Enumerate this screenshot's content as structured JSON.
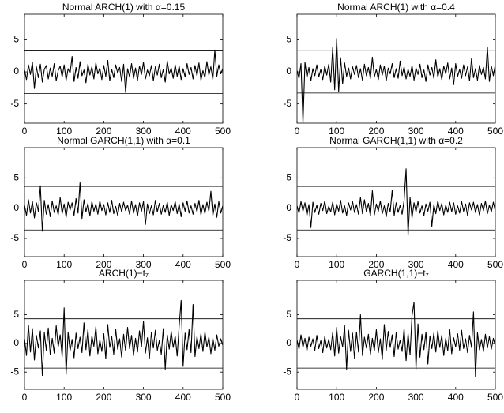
{
  "chart_data": [
    {
      "type": "line",
      "title": "Normal ARCH(1) with α=0.15",
      "color": "#000000",
      "xlim": [
        0,
        500
      ],
      "xticks": [
        0,
        100,
        200,
        300,
        400,
        500
      ],
      "ylim": [
        -8,
        9
      ],
      "yticks": [
        -5,
        0,
        5
      ],
      "hlines": [
        3.4,
        -3.4
      ],
      "x": [
        0,
        5,
        10,
        15,
        20,
        25,
        30,
        35,
        40,
        45,
        50,
        55,
        60,
        65,
        70,
        75,
        80,
        85,
        90,
        95,
        100,
        105,
        110,
        115,
        120,
        125,
        130,
        135,
        140,
        145,
        150,
        155,
        160,
        165,
        170,
        175,
        180,
        185,
        190,
        195,
        200,
        205,
        210,
        215,
        220,
        225,
        230,
        235,
        240,
        245,
        250,
        255,
        260,
        265,
        270,
        275,
        280,
        285,
        290,
        295,
        300,
        305,
        310,
        315,
        320,
        325,
        330,
        335,
        340,
        345,
        350,
        355,
        360,
        365,
        370,
        375,
        380,
        385,
        390,
        395,
        400,
        405,
        410,
        415,
        420,
        425,
        430,
        435,
        440,
        445,
        450,
        455,
        460,
        465,
        470,
        475,
        480,
        485,
        490,
        495,
        500
      ],
      "values": [
        0.3,
        -1.2,
        1.1,
        -0.4,
        1.5,
        -2.6,
        0.8,
        -0.9,
        1.2,
        -1.6,
        0.4,
        1.0,
        -1.1,
        0.6,
        -0.7,
        1.3,
        -1.4,
        0.2,
        0.9,
        -0.8,
        1.1,
        -1.3,
        0.5,
        -0.2,
        2.4,
        -1.5,
        0.7,
        -1.0,
        1.6,
        -0.6,
        0.3,
        -1.7,
        1.2,
        -0.5,
        0.8,
        -1.1,
        1.4,
        -0.3,
        0.6,
        -1.2,
        1.0,
        -0.7,
        1.8,
        -1.4,
        0.4,
        -0.9,
        1.1,
        -0.2,
        0.7,
        -1.5,
        1.2,
        -3.2,
        0.5,
        -0.8,
        1.3,
        -1.0,
        0.6,
        -1.3,
        0.9,
        -0.4,
        1.5,
        -1.1,
        0.3,
        -0.6,
        1.0,
        -1.4,
        0.8,
        -0.5,
        1.2,
        -0.9,
        0.4,
        -1.6,
        1.7,
        -0.3,
        0.6,
        -1.0,
        1.1,
        -0.7,
        0.9,
        -1.2,
        0.5,
        -0.8,
        1.3,
        -0.4,
        0.7,
        -1.1,
        1.0,
        -0.6,
        1.4,
        -1.3,
        0.2,
        -0.9,
        1.6,
        -0.5,
        0.8,
        -1.2,
        3.4,
        -0.7,
        1.1,
        -0.3,
        0.5
      ]
    },
    {
      "type": "line",
      "title": "Normal ARCH(1) with α=0.4",
      "color": "#000000",
      "xlim": [
        0,
        500
      ],
      "xticks": [
        0,
        100,
        200,
        300,
        400,
        500
      ],
      "ylim": [
        -8,
        9
      ],
      "yticks": [
        -5,
        0,
        5
      ],
      "hlines": [
        3.3,
        -3.3
      ],
      "x": [
        0,
        5,
        10,
        15,
        20,
        25,
        30,
        35,
        40,
        45,
        50,
        55,
        60,
        65,
        70,
        75,
        80,
        85,
        90,
        95,
        100,
        105,
        110,
        115,
        120,
        125,
        130,
        135,
        140,
        145,
        150,
        155,
        160,
        165,
        170,
        175,
        180,
        185,
        190,
        195,
        200,
        205,
        210,
        215,
        220,
        225,
        230,
        235,
        240,
        245,
        250,
        255,
        260,
        265,
        270,
        275,
        280,
        285,
        290,
        295,
        300,
        305,
        310,
        315,
        320,
        325,
        330,
        335,
        340,
        345,
        350,
        355,
        360,
        365,
        370,
        375,
        380,
        385,
        390,
        395,
        400,
        405,
        410,
        415,
        420,
        425,
        430,
        435,
        440,
        445,
        450,
        455,
        460,
        465,
        470,
        475,
        480,
        485,
        490,
        495,
        500
      ],
      "values": [
        0.2,
        -1.0,
        1.3,
        -8.0,
        1.5,
        -0.9,
        0.7,
        -1.4,
        0.5,
        -0.6,
        1.1,
        -0.8,
        0.4,
        -1.2,
        0.9,
        -0.5,
        1.2,
        -1.6,
        3.8,
        -2.8,
        5.2,
        -3.1,
        2.2,
        -1.9,
        1.4,
        -0.7,
        0.6,
        -1.1,
        0.8,
        -0.4,
        1.0,
        -0.9,
        0.5,
        -1.3,
        1.2,
        -0.6,
        0.7,
        -1.0,
        2.3,
        -0.8,
        0.4,
        -1.2,
        1.1,
        -0.5,
        0.9,
        -1.4,
        0.6,
        -0.3,
        1.3,
        -0.9,
        0.5,
        -1.0,
        1.7,
        -0.6,
        0.8,
        -1.1,
        0.4,
        -0.7,
        1.0,
        -1.3,
        0.6,
        -0.4,
        1.2,
        -0.9,
        0.3,
        -1.5,
        1.1,
        -0.5,
        0.7,
        -1.0,
        1.9,
        -0.8,
        0.5,
        -1.2,
        0.9,
        -0.3,
        1.4,
        -1.1,
        0.6,
        -2.0,
        1.3,
        -0.7,
        0.4,
        -1.0,
        1.1,
        -0.6,
        0.8,
        -1.4,
        2.1,
        -0.9,
        0.5,
        -1.3,
        1.0,
        -0.4,
        0.7,
        -1.1,
        3.9,
        -1.5,
        0.9,
        -0.6,
        1.2
      ]
    },
    {
      "type": "line",
      "title": "Normal GARCH(1,1) with α=0.1",
      "color": "#000000",
      "xlim": [
        0,
        500
      ],
      "xticks": [
        0,
        100,
        200,
        300,
        400,
        500
      ],
      "ylim": [
        -8,
        10
      ],
      "yticks": [
        -5,
        0,
        5
      ],
      "hlines": [
        3.6,
        -3.6
      ],
      "x": [
        0,
        5,
        10,
        15,
        20,
        25,
        30,
        35,
        40,
        45,
        50,
        55,
        60,
        65,
        70,
        75,
        80,
        85,
        90,
        95,
        100,
        105,
        110,
        115,
        120,
        125,
        130,
        135,
        140,
        145,
        150,
        155,
        160,
        165,
        170,
        175,
        180,
        185,
        190,
        195,
        200,
        205,
        210,
        215,
        220,
        225,
        230,
        235,
        240,
        245,
        250,
        255,
        260,
        265,
        270,
        275,
        280,
        285,
        290,
        295,
        300,
        305,
        310,
        315,
        320,
        325,
        330,
        335,
        340,
        345,
        350,
        355,
        360,
        365,
        370,
        375,
        380,
        385,
        390,
        395,
        400,
        405,
        410,
        415,
        420,
        425,
        430,
        435,
        440,
        445,
        450,
        455,
        460,
        465,
        470,
        475,
        480,
        485,
        490,
        495,
        500
      ],
      "values": [
        0.5,
        -1.2,
        1.4,
        -0.8,
        1.1,
        -1.6,
        0.9,
        -0.5,
        3.7,
        -3.8,
        1.3,
        -1.0,
        0.6,
        -1.4,
        1.2,
        -0.7,
        0.4,
        -1.1,
        1.8,
        -0.9,
        0.7,
        -1.5,
        1.0,
        -0.3,
        0.9,
        -1.2,
        1.6,
        -0.8,
        4.2,
        -1.7,
        1.4,
        -0.6,
        0.8,
        -1.3,
        1.1,
        -0.5,
        0.7,
        -1.0,
        1.2,
        -0.4,
        0.6,
        -1.1,
        0.9,
        -0.7,
        1.3,
        -0.9,
        0.3,
        -1.2,
        0.8,
        -0.6,
        1.0,
        -0.4,
        0.5,
        -1.0,
        1.2,
        -0.8,
        0.6,
        -1.3,
        0.9,
        -0.5,
        1.1,
        -2.7,
        0.7,
        -0.9,
        0.4,
        -1.1,
        1.3,
        -0.6,
        0.8,
        -1.0,
        0.5,
        -0.7,
        1.0,
        -1.2,
        0.6,
        -0.4,
        1.1,
        -0.9,
        0.7,
        -1.4,
        0.9,
        -0.5,
        1.2,
        -0.8,
        0.4,
        -1.0,
        0.8,
        -0.6,
        1.3,
        -1.1,
        0.6,
        -0.9,
        1.0,
        -0.5,
        2.8,
        -1.2,
        0.7,
        -1.5,
        1.1,
        -0.8,
        0.4
      ]
    },
    {
      "type": "line",
      "title": "Normal GARCH(1,1) with α=0.2",
      "color": "#000000",
      "xlim": [
        0,
        500
      ],
      "xticks": [
        0,
        100,
        200,
        300,
        400,
        500
      ],
      "ylim": [
        -8,
        10
      ],
      "yticks": [
        -5,
        0,
        5
      ],
      "hlines": [
        3.6,
        -3.6
      ],
      "x": [
        0,
        5,
        10,
        15,
        20,
        25,
        30,
        35,
        40,
        45,
        50,
        55,
        60,
        65,
        70,
        75,
        80,
        85,
        90,
        95,
        100,
        105,
        110,
        115,
        120,
        125,
        130,
        135,
        140,
        145,
        150,
        155,
        160,
        165,
        170,
        175,
        180,
        185,
        190,
        195,
        200,
        205,
        210,
        215,
        220,
        225,
        230,
        235,
        240,
        245,
        250,
        255,
        260,
        265,
        270,
        275,
        280,
        285,
        290,
        295,
        300,
        305,
        310,
        315,
        320,
        325,
        330,
        335,
        340,
        345,
        350,
        355,
        360,
        365,
        370,
        375,
        380,
        385,
        390,
        395,
        400,
        405,
        410,
        415,
        420,
        425,
        430,
        435,
        440,
        445,
        450,
        455,
        460,
        465,
        470,
        475,
        480,
        485,
        490,
        495,
        500
      ],
      "values": [
        0.4,
        -0.8,
        1.1,
        -0.5,
        0.9,
        -1.2,
        0.6,
        -3.2,
        1.0,
        -0.7,
        0.5,
        -1.0,
        0.8,
        -0.4,
        1.2,
        -0.9,
        0.3,
        -0.6,
        1.0,
        -1.1,
        0.7,
        -0.5,
        1.3,
        -0.8,
        0.4,
        -1.2,
        0.9,
        -0.3,
        1.1,
        -0.7,
        0.6,
        -1.0,
        1.8,
        -0.9,
        1.4,
        -0.6,
        0.8,
        -1.3,
        2.9,
        -1.1,
        0.7,
        -0.5,
        1.2,
        -0.9,
        0.4,
        -1.4,
        0.8,
        -0.6,
        3.0,
        -1.2,
        0.9,
        -0.7,
        0.5,
        -1.0,
        1.3,
        6.5,
        -4.5,
        1.8,
        -1.6,
        0.9,
        -0.6,
        1.1,
        -0.8,
        0.4,
        -1.2,
        0.7,
        -0.5,
        1.0,
        -3.0,
        0.6,
        -0.9,
        1.2,
        -0.4,
        0.8,
        -1.1,
        0.5,
        -0.7,
        1.0,
        -0.6,
        0.9,
        -1.0,
        0.4,
        -0.8,
        1.1,
        -0.5,
        0.7,
        -1.2,
        0.9,
        -0.3,
        1.0,
        -0.7,
        0.6,
        -1.1,
        0.8,
        -0.4,
        1.2,
        -0.9,
        0.5,
        -0.6,
        1.0,
        -0.5
      ]
    },
    {
      "type": "line",
      "title": "ARCH(1)−t₇",
      "color": "#000000",
      "xlim": [
        0,
        500
      ],
      "xticks": [
        0,
        100,
        200,
        300,
        400,
        500
      ],
      "ylim": [
        -8,
        11
      ],
      "yticks": [
        -5,
        0,
        5
      ],
      "hlines": [
        4.3,
        -4.3
      ],
      "x": [
        0,
        5,
        10,
        15,
        20,
        25,
        30,
        35,
        40,
        45,
        50,
        55,
        60,
        65,
        70,
        75,
        80,
        85,
        90,
        95,
        100,
        105,
        110,
        115,
        120,
        125,
        130,
        135,
        140,
        145,
        150,
        155,
        160,
        165,
        170,
        175,
        180,
        185,
        190,
        195,
        200,
        205,
        210,
        215,
        220,
        225,
        230,
        235,
        240,
        245,
        250,
        255,
        260,
        265,
        270,
        275,
        280,
        285,
        290,
        295,
        300,
        305,
        310,
        315,
        320,
        325,
        330,
        335,
        340,
        345,
        350,
        355,
        360,
        365,
        370,
        375,
        380,
        385,
        390,
        395,
        400,
        405,
        410,
        415,
        420,
        425,
        430,
        435,
        440,
        445,
        450,
        455,
        460,
        465,
        470,
        475,
        480,
        485,
        490,
        495,
        500
      ],
      "values": [
        0.8,
        -2.1,
        3.2,
        -1.5,
        2.6,
        -2.9,
        1.4,
        -0.8,
        2.2,
        -5.6,
        1.9,
        -1.2,
        2.7,
        -2.0,
        0.9,
        -1.7,
        3.1,
        -0.6,
        1.5,
        -2.3,
        6.2,
        -5.4,
        2.0,
        -1.3,
        0.7,
        -2.5,
        1.8,
        -0.9,
        1.1,
        -1.6,
        3.6,
        -1.1,
        2.4,
        -2.2,
        1.3,
        -0.5,
        2.9,
        -1.8,
        0.6,
        -1.4,
        1.7,
        -2.7,
        3.3,
        -0.7,
        1.2,
        -1.9,
        2.5,
        -1.0,
        0.8,
        -2.4,
        1.6,
        -1.3,
        2.8,
        -0.9,
        1.4,
        -2.1,
        0.9,
        -1.5,
        2.2,
        -0.6,
        3.9,
        -1.7,
        1.0,
        -2.6,
        1.9,
        -0.8,
        2.3,
        -1.2,
        0.5,
        -1.9,
        2.6,
        -4.5,
        1.5,
        -1.0,
        2.1,
        -0.7,
        1.3,
        -2.2,
        3.0,
        7.5,
        -4.0,
        1.8,
        -1.1,
        2.4,
        -1.6,
        6.8,
        -2.3,
        1.2,
        -0.9,
        1.7,
        -1.4,
        2.0,
        -0.6,
        1.1,
        -1.8,
        0.9,
        -1.2,
        1.5,
        -0.5,
        0.8,
        -0.3
      ]
    },
    {
      "type": "line",
      "title": "GARCH(1,1)−t₇",
      "color": "#000000",
      "xlim": [
        0,
        500
      ],
      "xticks": [
        0,
        100,
        200,
        300,
        400,
        500
      ],
      "ylim": [
        -8,
        11
      ],
      "yticks": [
        -5,
        0,
        5
      ],
      "hlines": [
        4.3,
        -4.3
      ],
      "x": [
        0,
        5,
        10,
        15,
        20,
        25,
        30,
        35,
        40,
        45,
        50,
        55,
        60,
        65,
        70,
        75,
        80,
        85,
        90,
        95,
        100,
        105,
        110,
        115,
        120,
        125,
        130,
        135,
        140,
        145,
        150,
        155,
        160,
        165,
        170,
        175,
        180,
        185,
        190,
        195,
        200,
        205,
        210,
        215,
        220,
        225,
        230,
        235,
        240,
        245,
        250,
        255,
        260,
        265,
        270,
        275,
        280,
        285,
        290,
        295,
        300,
        305,
        310,
        315,
        320,
        325,
        330,
        335,
        340,
        345,
        350,
        355,
        360,
        365,
        370,
        375,
        380,
        385,
        390,
        395,
        400,
        405,
        410,
        415,
        420,
        425,
        430,
        435,
        440,
        445,
        450,
        455,
        460,
        465,
        470,
        475,
        480,
        485,
        490,
        495,
        500
      ],
      "values": [
        0.6,
        -1.0,
        1.5,
        -0.7,
        0.9,
        -1.3,
        1.1,
        -0.5,
        0.8,
        -1.2,
        1.4,
        -0.9,
        0.5,
        -1.6,
        1.2,
        -0.8,
        0.7,
        -1.1,
        1.9,
        -2.2,
        2.8,
        -1.7,
        1.2,
        -0.6,
        3.1,
        -4.5,
        2.3,
        -1.4,
        1.8,
        -2.6,
        2.0,
        -1.5,
        5.0,
        -2.1,
        1.1,
        -0.8,
        1.6,
        -1.9,
        0.9,
        -1.3,
        2.4,
        -1.6,
        0.8,
        -2.8,
        3.3,
        -1.2,
        2.1,
        -0.7,
        1.5,
        -2.3,
        1.9,
        -1.0,
        0.6,
        -1.4,
        2.6,
        -3.0,
        1.7,
        -2.0,
        4.9,
        7.2,
        -4.5,
        3.4,
        -2.4,
        1.6,
        -1.1,
        2.0,
        -3.6,
        1.3,
        -0.9,
        1.8,
        -1.5,
        2.2,
        -0.7,
        1.4,
        -2.1,
        0.9,
        -1.3,
        2.5,
        -1.8,
        1.0,
        -0.6,
        1.7,
        -1.2,
        2.3,
        -0.9,
        0.8,
        -1.6,
        1.4,
        -0.7,
        5.5,
        -5.8,
        1.9,
        -1.1,
        0.7,
        -1.4,
        1.6,
        -0.8,
        1.2,
        -1.0,
        0.9,
        -0.4
      ]
    }
  ]
}
